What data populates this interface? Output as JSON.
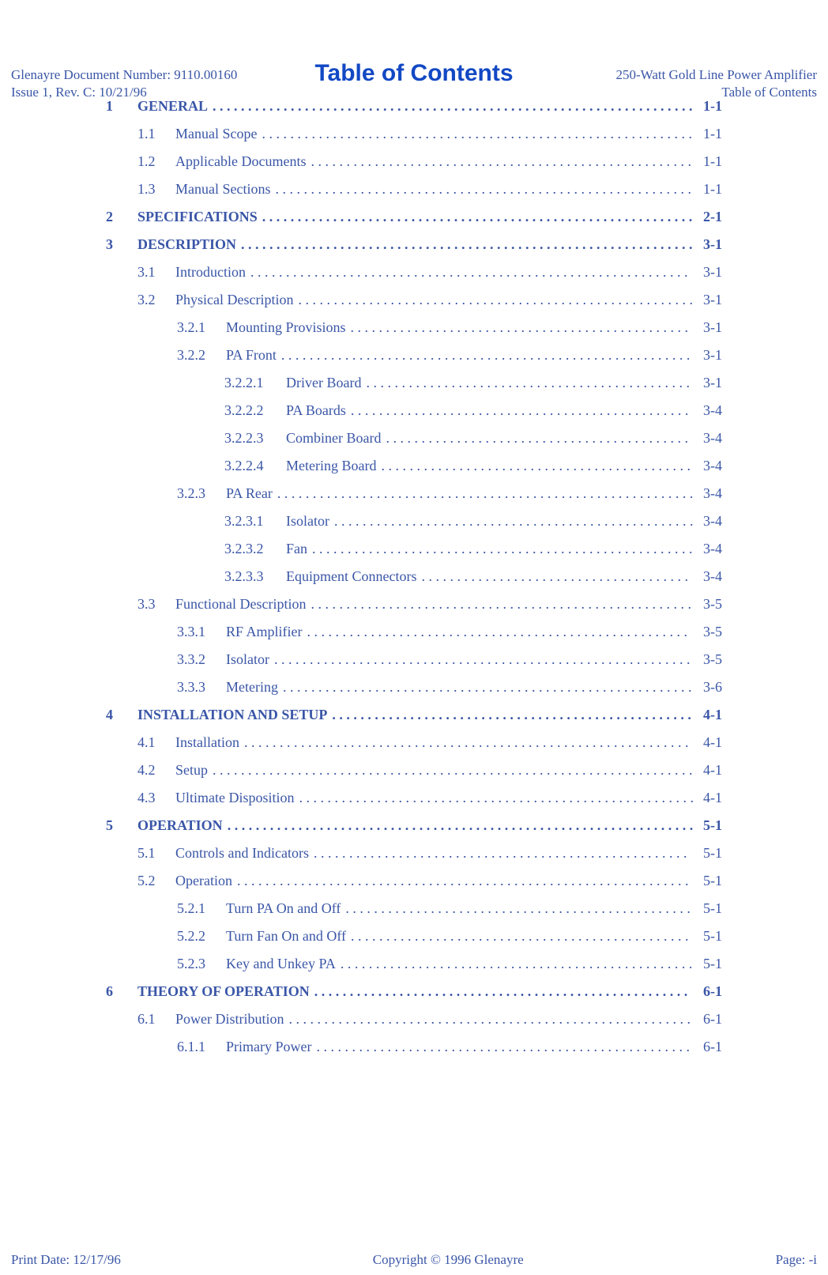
{
  "colors": {
    "accent": "#3a56a7",
    "title": "#1248c4",
    "background": "#ffffff"
  },
  "typography": {
    "body_family": "Times New Roman",
    "title_family": "Arial",
    "body_size_pt": 13,
    "title_size_pt": 22,
    "title_weight": "bold"
  },
  "header": {
    "left1": "Glenayre Document Number: 9110.00160",
    "left2": "Issue 1, Rev. C: 10/21/96",
    "right1": "250-Watt Gold Line Power Amplifier",
    "right2": "Table of Contents"
  },
  "footer": {
    "left": "Print Date: 12/17/96",
    "center": "Copyright © 1996 Glenayre",
    "right": "Page: -i"
  },
  "title": "Table of Contents",
  "dots": {
    "chapter": " .",
    "sub1": "  .",
    "sub2_3": " ."
  },
  "toc": [
    {
      "level": "ch",
      "num": "1",
      "label": "GENERAL",
      "page": "1-1"
    },
    {
      "level": "s1",
      "num": "1.1",
      "label": "Manual Scope",
      "page": "1-1"
    },
    {
      "level": "s1",
      "num": "1.2",
      "label": "Applicable Documents",
      "page": "1-1"
    },
    {
      "level": "s1",
      "num": "1.3",
      "label": "Manual Sections",
      "page": "1-1"
    },
    {
      "level": "ch",
      "num": "2",
      "label": "SPECIFICATIONS",
      "page": "2-1"
    },
    {
      "level": "ch",
      "num": "3",
      "label": "DESCRIPTION",
      "page": "3-1"
    },
    {
      "level": "s1",
      "num": "3.1",
      "label": "Introduction",
      "page": "3-1"
    },
    {
      "level": "s1",
      "num": "3.2",
      "label": "Physical Description",
      "page": "3-1"
    },
    {
      "level": "s2",
      "num": "3.2.1",
      "label": "Mounting Provisions",
      "page": "3-1"
    },
    {
      "level": "s2",
      "num": "3.2.2",
      "label": "PA Front",
      "page": "3-1"
    },
    {
      "level": "s3",
      "num": "3.2.2.1",
      "label": "Driver Board",
      "page": "3-1"
    },
    {
      "level": "s3",
      "num": "3.2.2.2",
      "label": "PA Boards",
      "page": "3-4"
    },
    {
      "level": "s3",
      "num": "3.2.2.3",
      "label": "Combiner Board",
      "page": "3-4"
    },
    {
      "level": "s3",
      "num": "3.2.2.4",
      "label": "Metering Board",
      "page": "3-4"
    },
    {
      "level": "s2",
      "num": "3.2.3",
      "label": "PA Rear",
      "page": "3-4"
    },
    {
      "level": "s3",
      "num": "3.2.3.1",
      "label": "Isolator",
      "page": "3-4"
    },
    {
      "level": "s3",
      "num": "3.2.3.2",
      "label": "Fan",
      "page": "3-4"
    },
    {
      "level": "s3",
      "num": "3.2.3.3",
      "label": "Equipment Connectors",
      "page": "3-4"
    },
    {
      "level": "s1",
      "num": "3.3",
      "label": "Functional Description",
      "page": "3-5"
    },
    {
      "level": "s2",
      "num": "3.3.1",
      "label": "RF Amplifier",
      "page": "3-5"
    },
    {
      "level": "s2",
      "num": "3.3.2",
      "label": "Isolator",
      "page": "3-5"
    },
    {
      "level": "s2",
      "num": "3.3.3",
      "label": "Metering",
      "page": "3-6"
    },
    {
      "level": "ch",
      "num": "4",
      "label": "INSTALLATION AND SETUP",
      "page": "4-1"
    },
    {
      "level": "s1",
      "num": "4.1",
      "label": "Installation",
      "page": "4-1"
    },
    {
      "level": "s1",
      "num": "4.2",
      "label": "Setup",
      "page": "4-1"
    },
    {
      "level": "s1",
      "num": "4.3",
      "label": "Ultimate Disposition",
      "page": "4-1"
    },
    {
      "level": "ch",
      "num": "5",
      "label": "OPERATION",
      "page": "5-1"
    },
    {
      "level": "s1",
      "num": "5.1",
      "label": "Controls and Indicators",
      "page": "5-1"
    },
    {
      "level": "s1",
      "num": "5.2",
      "label": "Operation",
      "page": "5-1"
    },
    {
      "level": "s2",
      "num": "5.2.1",
      "label": "Turn PA On and Off",
      "page": "5-1"
    },
    {
      "level": "s2",
      "num": "5.2.2",
      "label": "Turn Fan On and Off",
      "page": "5-1"
    },
    {
      "level": "s2",
      "num": "5.2.3",
      "label": "Key and Unkey PA",
      "page": "5-1"
    },
    {
      "level": "ch",
      "num": "6",
      "label": "THEORY OF OPERATION",
      "page": "6-1"
    },
    {
      "level": "s1",
      "num": "6.1",
      "label": "Power Distribution",
      "page": "6-1"
    },
    {
      "level": "s2",
      "num": "6.1.1",
      "label": "Primary Power",
      "page": "6-1"
    }
  ]
}
